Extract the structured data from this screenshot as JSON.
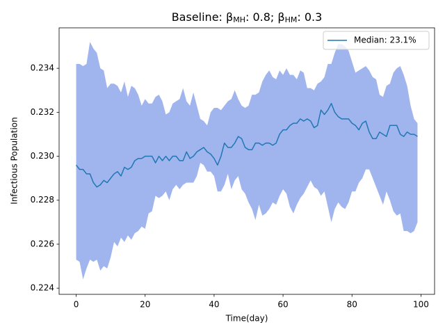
{
  "chart_data": {
    "type": "line",
    "title": [
      "Baseline: β",
      "MH",
      ": 0.8; β",
      "HM",
      ": 0.3"
    ],
    "x_label": "Time(day)",
    "y_label": "Infectious Population",
    "x": [
      0,
      1,
      2,
      3,
      4,
      5,
      6,
      7,
      8,
      9,
      10,
      11,
      12,
      13,
      14,
      15,
      16,
      17,
      18,
      19,
      20,
      21,
      22,
      23,
      24,
      25,
      26,
      27,
      28,
      29,
      30,
      31,
      32,
      33,
      34,
      35,
      36,
      37,
      38,
      39,
      40,
      41,
      42,
      43,
      44,
      45,
      46,
      47,
      48,
      49,
      50,
      51,
      52,
      53,
      54,
      55,
      56,
      57,
      58,
      59,
      60,
      61,
      62,
      63,
      64,
      65,
      66,
      67,
      68,
      69,
      70,
      71,
      72,
      73,
      74,
      75,
      76,
      77,
      78,
      79,
      80,
      81,
      82,
      83,
      84,
      85,
      86,
      87,
      88,
      89,
      90,
      91,
      92,
      93,
      94,
      95,
      96,
      97,
      98,
      99
    ],
    "series": [
      {
        "name": "Median: 23.1%",
        "color": "#1f77b4",
        "values": [
          0.2296,
          0.2294,
          0.2294,
          0.2292,
          0.2292,
          0.2288,
          0.2286,
          0.2287,
          0.2289,
          0.2288,
          0.229,
          0.2292,
          0.2293,
          0.2291,
          0.2295,
          0.2294,
          0.2295,
          0.2298,
          0.2299,
          0.2299,
          0.23,
          0.23,
          0.23,
          0.2297,
          0.23,
          0.2298,
          0.23,
          0.2298,
          0.23,
          0.23,
          0.2298,
          0.2298,
          0.2302,
          0.2299,
          0.23,
          0.2302,
          0.2303,
          0.2304,
          0.2302,
          0.2301,
          0.2299,
          0.2296,
          0.23,
          0.2306,
          0.2304,
          0.2304,
          0.2306,
          0.2309,
          0.2308,
          0.2304,
          0.2303,
          0.2303,
          0.2306,
          0.2306,
          0.2305,
          0.2306,
          0.2306,
          0.2305,
          0.2306,
          0.231,
          0.2312,
          0.2312,
          0.2314,
          0.2315,
          0.2315,
          0.2317,
          0.2316,
          0.2317,
          0.2316,
          0.2313,
          0.2314,
          0.2321,
          0.2319,
          0.2321,
          0.2324,
          0.232,
          0.2318,
          0.2317,
          0.2317,
          0.2317,
          0.2315,
          0.2314,
          0.2312,
          0.2315,
          0.2316,
          0.2311,
          0.2308,
          0.2308,
          0.2311,
          0.231,
          0.2309,
          0.2314,
          0.2314,
          0.2314,
          0.231,
          0.2309,
          0.2311,
          0.231,
          0.231,
          0.2309
        ]
      }
    ],
    "band": {
      "color": "#a0b4ee",
      "upper": [
        0.2342,
        0.2342,
        0.2341,
        0.2342,
        0.2352,
        0.2349,
        0.2347,
        0.234,
        0.2339,
        0.2331,
        0.2333,
        0.2333,
        0.2332,
        0.2329,
        0.2334,
        0.2327,
        0.2332,
        0.2331,
        0.2328,
        0.2323,
        0.2326,
        0.2324,
        0.2324,
        0.2327,
        0.2328,
        0.2325,
        0.2319,
        0.232,
        0.2324,
        0.2325,
        0.2326,
        0.2331,
        0.2325,
        0.2323,
        0.2329,
        0.2323,
        0.2317,
        0.2316,
        0.2314,
        0.232,
        0.2322,
        0.2322,
        0.2321,
        0.2323,
        0.2325,
        0.2326,
        0.233,
        0.2326,
        0.2323,
        0.2322,
        0.2323,
        0.2328,
        0.2328,
        0.2329,
        0.2334,
        0.2337,
        0.2339,
        0.2336,
        0.2335,
        0.2339,
        0.2337,
        0.234,
        0.2337,
        0.2337,
        0.2335,
        0.2339,
        0.2338,
        0.2331,
        0.2331,
        0.233,
        0.2333,
        0.2334,
        0.2336,
        0.2342,
        0.2342,
        0.2347,
        0.2351,
        0.2351,
        0.235,
        0.2348,
        0.2343,
        0.2338,
        0.2339,
        0.234,
        0.2341,
        0.2339,
        0.2336,
        0.2335,
        0.2328,
        0.2327,
        0.2332,
        0.2333,
        0.2338,
        0.234,
        0.2341,
        0.2337,
        0.2332,
        0.2323,
        0.2317,
        0.2315
      ],
      "lower": [
        0.2253,
        0.2252,
        0.2244,
        0.2249,
        0.2253,
        0.2252,
        0.2253,
        0.2248,
        0.225,
        0.2249,
        0.2254,
        0.2261,
        0.2259,
        0.2263,
        0.2261,
        0.2264,
        0.2262,
        0.2265,
        0.2266,
        0.2268,
        0.2267,
        0.2274,
        0.2275,
        0.2282,
        0.2281,
        0.2282,
        0.2284,
        0.228,
        0.2285,
        0.2287,
        0.2285,
        0.2287,
        0.2288,
        0.2288,
        0.2288,
        0.2291,
        0.2297,
        0.2296,
        0.2293,
        0.2293,
        0.2291,
        0.2284,
        0.2284,
        0.2287,
        0.2292,
        0.2285,
        0.2289,
        0.2291,
        0.2285,
        0.2283,
        0.2279,
        0.2276,
        0.2271,
        0.2278,
        0.2273,
        0.2274,
        0.2276,
        0.2279,
        0.2278,
        0.2282,
        0.2285,
        0.2283,
        0.2277,
        0.2274,
        0.2278,
        0.2281,
        0.2283,
        0.2286,
        0.2289,
        0.2286,
        0.2285,
        0.2282,
        0.2284,
        0.2277,
        0.227,
        0.2276,
        0.2279,
        0.2277,
        0.2276,
        0.2279,
        0.2284,
        0.2284,
        0.2288,
        0.229,
        0.2294,
        0.2294,
        0.229,
        0.2286,
        0.2282,
        0.2278,
        0.2284,
        0.228,
        0.2275,
        0.2273,
        0.2274,
        0.2266,
        0.2266,
        0.2265,
        0.2266,
        0.227
      ]
    },
    "xlim": [
      -4.95,
      103.95
    ],
    "ylim": [
      0.22372,
      0.23584
    ],
    "xticks": [
      0,
      20,
      40,
      60,
      80,
      100
    ],
    "yticks": [
      0.224,
      0.226,
      0.228,
      0.23,
      0.232,
      0.234
    ],
    "legend": "upper right"
  }
}
